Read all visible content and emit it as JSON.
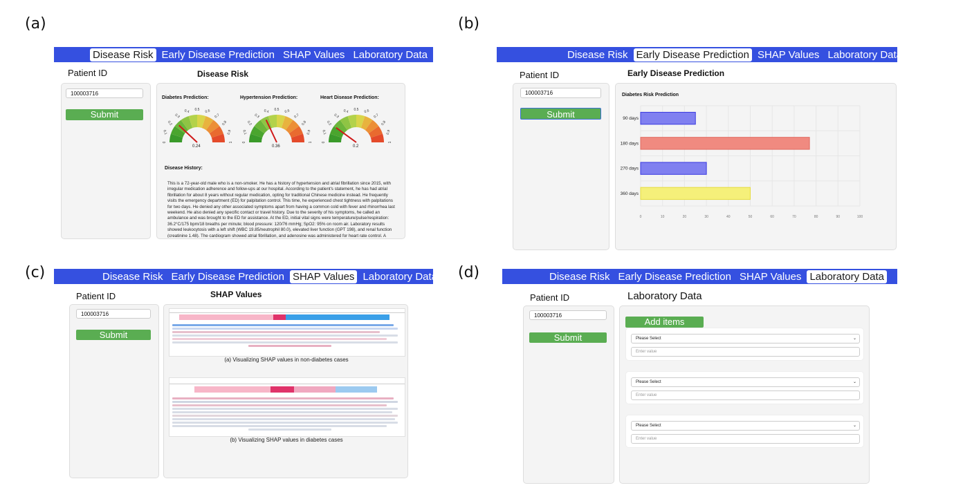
{
  "panel_labels": [
    "(a)",
    "(b)",
    "(c)",
    "(d)"
  ],
  "nav": {
    "tabs": [
      "Disease Risk",
      "Early Disease Prediction",
      "SHAP Values",
      "Laboratory Data"
    ]
  },
  "patient": {
    "label": "Patient ID",
    "id_value": "100003716",
    "submit_label": "Submit"
  },
  "panel_a": {
    "title": "Disease Risk",
    "gauges": [
      {
        "label": "Diabetes Prediction:",
        "value": 0.24,
        "value_text": "0.24"
      },
      {
        "label": "Hypertension Prediction:",
        "value": 0.36,
        "value_text": "0.36"
      },
      {
        "label": "Heart Disease Prediction:",
        "value": 0.2,
        "value_text": "0.2"
      }
    ],
    "gauge_ticks": [
      "0",
      "0.1",
      "0.2",
      "0.3",
      "0.4",
      "0.5",
      "0.6",
      "0.7",
      "0.8",
      "0.9",
      "1"
    ],
    "history_label": "Disease History:",
    "history_text": "This is a 72-year-old male who is a non-smoker. He has a history of hypertension and atrial fibrillation since 2015, with irregular medication adherence and follow-ups at our hospital. According to the patient's statement, he has had atrial fibrillation for about 8 years without regular medication, opting for traditional Chinese medicine instead. He frequently visits the emergency department (ED) for palpitation control. This time, he experienced chest tightness with palpitations for two days. He denied any other associated symptoms apart from having a common cold with fever and rhinorrhea last weekend. He also denied any specific contact or travel history. Due to the severity of his symptoms, he called an ambulance and was brought to the ED for assistance. At the ED, initial vital signs were temperature/pulse/respiration: 36.2°C/175 bpm/18 breaths per minute; blood pressure: 120/76 mmHg; SpO2: 95% on room air. Laboratory results showed leukocytosis with a left shift (WBC 19.85/neutrophil 80.0), elevated liver function (GPT 198), and renal function (creatinine 1.48). The cardiogram showed atrial fibrillation, and adenosine was administered for heart rate control. A chest X-ray"
  },
  "panel_b": {
    "title": "Early Disease Prediction",
    "colors": {
      "blue": "#8080f0",
      "red": "#f08a80",
      "yellow": "#f5f07a"
    }
  },
  "chart_data": {
    "type": "bar",
    "orientation": "horizontal",
    "title": "Diabetes Risk Prediction",
    "categories": [
      "90  days",
      "180  days",
      "270  days",
      "360  days"
    ],
    "values": [
      25,
      77,
      30,
      50
    ],
    "colors": [
      "#8080f0",
      "#f08a80",
      "#8080f0",
      "#f5f07a"
    ],
    "xlim": [
      0,
      100
    ],
    "xticks": [
      "0",
      "10",
      "20",
      "30",
      "40",
      "50",
      "60",
      "70",
      "80",
      "90",
      "100"
    ],
    "grid": true
  },
  "panel_c": {
    "title": "SHAP Values",
    "caption_a": "(a) Visualizing SHAP values in non-diabetes cases",
    "caption_b": "(b) Visualizing SHAP values in diabetes cases"
  },
  "panel_d": {
    "title": "Laboratory Data",
    "add_label": "Add items",
    "select_placeholder": "Please Select",
    "value_placeholder": "Enter value"
  }
}
